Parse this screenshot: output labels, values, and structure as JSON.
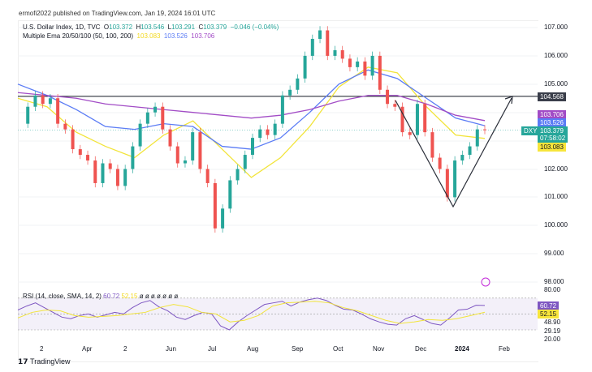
{
  "header": {
    "publisher": "ermofi2022 published on TradingView.com, Jan 19, 2024 16:01 UTC"
  },
  "legend": {
    "symbol": "U.S. Dollar Index, 1D, TVC",
    "o_label": "O",
    "o": "103.372",
    "h_label": "H",
    "h": "103.546",
    "l_label": "L",
    "l": "103.291",
    "c_label": "C",
    "c": "103.379",
    "change": "−0.046 (−0.04%)",
    "ema_title": "Multiple Ema 20/50/100 (50, 100, 200)",
    "ema20": "103.083",
    "ema50": "103.526",
    "ema100": "103.706"
  },
  "price_labels": {
    "ema100": "103.706",
    "ema50": "103.526",
    "last": "103.379",
    "countdown": "07:58:02",
    "ema20": "103.083",
    "hline": "104.568",
    "ticker": "DXY"
  },
  "colors": {
    "up": "#26a69a",
    "down": "#ef5350",
    "ema20": "#f2e43a",
    "ema50": "#5b7cf5",
    "ema100": "#a24cc6",
    "rsi": "#7e57c2",
    "hline": "#131722"
  },
  "rsi": {
    "title": "RSI (14, close, SMA, 14, 2)",
    "value": "60.72",
    "sma": "52.15",
    "dots": "ø ø ø ø ø ø ø",
    "axis": [
      "80.00",
      "60.72",
      "52.15",
      "48.90",
      "29.19",
      "20.00"
    ]
  },
  "footer": {
    "brand": "TradingView"
  },
  "chart_data": {
    "type": "line",
    "title": "U.S. Dollar Index, 1D, TVC",
    "yaxis_ticks": [
      107,
      106,
      105,
      104.568,
      102,
      101,
      100,
      99,
      98
    ],
    "ytick_labels": [
      "107.000",
      "106.000",
      "105.000",
      "104.568",
      "102.000",
      "101.000",
      "100.000",
      "99.000",
      "98.000"
    ],
    "ylim": [
      97.6,
      107.3
    ],
    "xtick_labels": [
      "2",
      "Apr",
      "2",
      "Jun",
      "Jul",
      "Aug",
      "Sep",
      "Oct",
      "Nov",
      "Dec",
      "2024",
      "Feb"
    ],
    "close": [
      103.6,
      104.2,
      104.6,
      104.3,
      104.5,
      103.6,
      103.4,
      102.7,
      102.5,
      102.3,
      101.5,
      102.2,
      102.0,
      101.4,
      102.0,
      102.8,
      103.6,
      104.0,
      104.2,
      103.4,
      102.8,
      102.2,
      102.3,
      103.3,
      102.0,
      101.5,
      99.9,
      100.6,
      101.6,
      102.0,
      102.5,
      103.1,
      103.4,
      103.2,
      103.6,
      104.6,
      104.8,
      105.2,
      106.0,
      106.6,
      106.9,
      106.0,
      106.2,
      105.9,
      105.6,
      105.8,
      105.3,
      106.0,
      104.8,
      104.3,
      104.2,
      103.3,
      103.2,
      104.3,
      103.3,
      102.4,
      102.0,
      101.0,
      102.3,
      102.5,
      102.8,
      103.4,
      103.379
    ],
    "series": [
      {
        "name": "EMA 20",
        "values": [
          104.5,
          104.2,
          103.3,
          102.8,
          102.4,
          103.2,
          103.7,
          102.7,
          101.7,
          102.4,
          103.5,
          104.9,
          105.6,
          105.4,
          104.2,
          103.2,
          103.08
        ]
      },
      {
        "name": "EMA 50",
        "values": [
          105.0,
          104.6,
          104.1,
          103.5,
          103.4,
          103.6,
          103.5,
          102.8,
          102.7,
          103.1,
          104.0,
          105.0,
          105.5,
          105.2,
          104.5,
          103.8,
          103.53
        ]
      },
      {
        "name": "EMA 100",
        "values": [
          104.7,
          104.6,
          104.5,
          104.3,
          104.2,
          104.1,
          104.0,
          103.9,
          103.8,
          103.9,
          104.1,
          104.4,
          104.6,
          104.6,
          104.3,
          103.9,
          103.71
        ]
      }
    ],
    "horizontal_line": 104.568,
    "rsi": {
      "values": [
        55,
        60,
        64,
        58,
        52,
        46,
        44,
        48,
        50,
        46,
        49,
        52,
        50,
        58,
        64,
        67,
        59,
        54,
        46,
        43,
        48,
        52,
        50,
        35,
        30,
        40,
        48,
        55,
        62,
        64,
        66,
        60,
        65,
        68,
        70,
        67,
        61,
        56,
        55,
        50,
        44,
        40,
        37,
        36,
        44,
        48,
        43,
        38,
        36,
        45,
        55,
        56,
        61,
        60.72
      ],
      "sma": [
        45,
        52,
        55,
        54,
        48,
        46,
        47,
        48,
        50,
        52,
        58,
        62,
        59,
        52,
        50,
        40,
        42,
        48,
        60,
        64,
        65,
        66,
        64,
        58,
        54,
        48,
        42,
        38,
        40,
        43,
        42,
        44,
        48,
        52.15
      ]
    }
  }
}
